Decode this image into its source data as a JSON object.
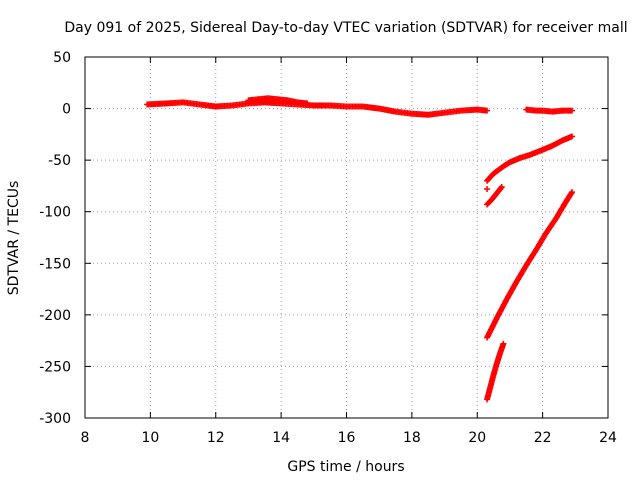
{
  "chart_data": {
    "type": "scatter",
    "title": "Day 091 of 2025, Sidereal Day-to-day VTEC variation (SDTVAR) for receiver mall",
    "xlabel": "GPS time / hours",
    "ylabel": "SDTVAR / TECUs",
    "xlim": [
      8,
      24
    ],
    "ylim": [
      -300,
      50
    ],
    "xticks": [
      8,
      10,
      12,
      14,
      16,
      18,
      20,
      22,
      24
    ],
    "yticks": [
      50,
      0,
      -50,
      -100,
      -150,
      -200,
      -250,
      -300
    ],
    "grid": true,
    "marker": "plus",
    "color": "#ff0000",
    "series": [
      {
        "x": [
          9.9,
          10.5,
          11.0,
          11.5,
          12.0,
          12.5,
          13.0,
          13.5,
          14.0,
          14.5,
          15.0,
          15.5,
          16.0,
          16.5,
          17.0,
          17.5,
          18.0,
          18.5,
          19.0,
          19.5,
          20.0,
          20.3
        ],
        "y": [
          4,
          5,
          6,
          4,
          2,
          3,
          5,
          6,
          5,
          4,
          3,
          3,
          2,
          2,
          0,
          -3,
          -5,
          -6,
          -4,
          -2,
          -1,
          -2
        ]
      },
      {
        "x": [
          13.0,
          13.3,
          13.6,
          13.9,
          14.2,
          14.5,
          14.8
        ],
        "y": [
          8,
          9,
          10,
          9,
          8,
          6,
          5
        ]
      },
      {
        "x": [
          21.5,
          21.8,
          22.0,
          22.3,
          22.6,
          22.9
        ],
        "y": [
          -1,
          -2,
          -2,
          -3,
          -2,
          -2
        ]
      },
      {
        "x": [
          20.3,
          20.5,
          20.8,
          21.0,
          21.3,
          21.6,
          22.0,
          22.3,
          22.6,
          22.9
        ],
        "y": [
          -70,
          -63,
          -56,
          -52,
          -48,
          -45,
          -40,
          -36,
          -31,
          -27
        ]
      },
      {
        "x": [
          20.3,
          20.45,
          20.6,
          20.75
        ],
        "y": [
          -93,
          -88,
          -82,
          -76
        ]
      },
      {
        "x": [
          20.3
        ],
        "y": [
          -78
        ]
      },
      {
        "x": [
          20.3,
          20.6,
          20.9,
          21.2,
          21.5,
          21.8,
          22.1,
          22.4,
          22.7,
          22.9
        ],
        "y": [
          -222,
          -203,
          -185,
          -168,
          -152,
          -137,
          -121,
          -107,
          -91,
          -81
        ]
      },
      {
        "x": [
          20.3,
          20.4,
          20.5,
          20.6,
          20.7,
          20.8
        ],
        "y": [
          -282,
          -270,
          -258,
          -247,
          -237,
          -228
        ]
      }
    ]
  }
}
